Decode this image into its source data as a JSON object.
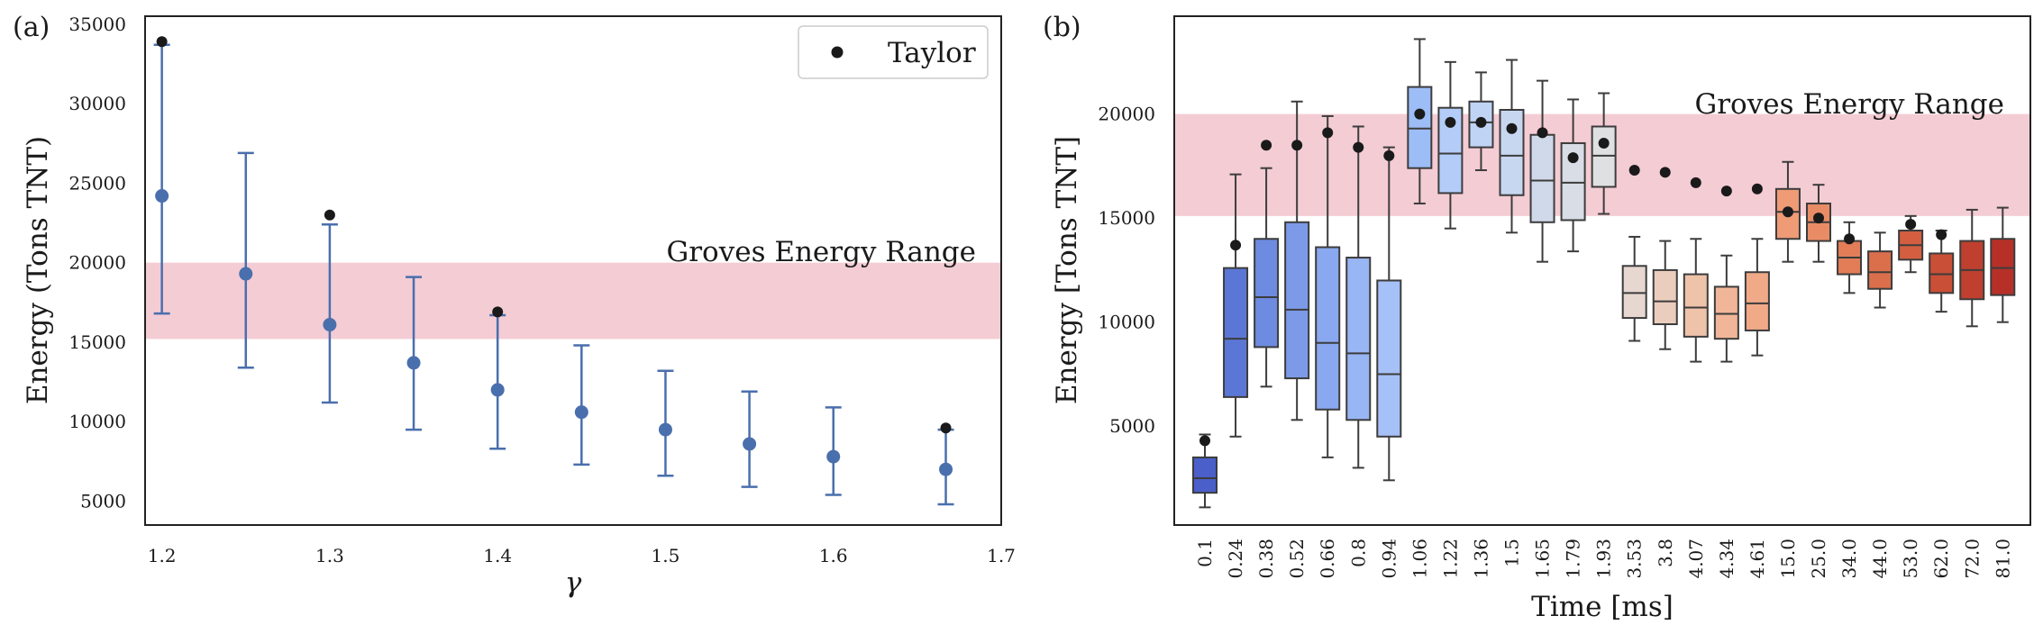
{
  "chart_data": [
    {
      "panel_label": "(a)",
      "type": "scatter",
      "xlabel": "γ",
      "ylabel": "Energy (Tons TNT)",
      "xlim": [
        1.19,
        1.7
      ],
      "ylim": [
        3500,
        35500
      ],
      "xticks": [
        "1.2",
        "1.3",
        "1.4",
        "1.5",
        "1.6",
        "1.7"
      ],
      "yticks": [
        "5000",
        "10000",
        "15000",
        "20000",
        "25000",
        "30000",
        "35000"
      ],
      "grid": false,
      "legend": {
        "placement": "top-right",
        "entries": [
          "Taylor"
        ]
      },
      "band": {
        "label": "Groves Energy Range",
        "range": [
          15200,
          20000
        ],
        "color": "#f4ccd4"
      },
      "colors": {
        "series": "#4a6fad",
        "taylor": "#1a1a1a"
      },
      "series": [
        {
          "name": "",
          "x": [
            1.2,
            1.25,
            1.3,
            1.35,
            1.4,
            1.45,
            1.5,
            1.55,
            1.6,
            1.667
          ],
          "y": [
            24200,
            19300,
            16100,
            13700,
            12000,
            10600,
            9500,
            8600,
            7800,
            7000
          ],
          "ylow": [
            16800,
            13400,
            11200,
            9500,
            8300,
            7300,
            6600,
            5900,
            5400,
            4800
          ],
          "yhigh": [
            33700,
            26900,
            22400,
            19100,
            16700,
            14800,
            13200,
            11900,
            10900,
            9500
          ]
        },
        {
          "name": "Taylor",
          "x": [
            1.2,
            1.3,
            1.4,
            1.667
          ],
          "y": [
            33900,
            23000,
            16900,
            9600
          ]
        }
      ]
    },
    {
      "panel_label": "(b)",
      "type": "box",
      "xlabel": "Time [ms]",
      "ylabel": "Energy [Tons TNT]",
      "ylim": [
        250,
        24700
      ],
      "yticks": [
        "5000",
        "10000",
        "15000",
        "20000"
      ],
      "grid": false,
      "band": {
        "label": "Groves Energy Range",
        "range": [
          15100,
          20000
        ],
        "color": "#f4ccd4"
      },
      "categories": [
        "0.1",
        "0.24",
        "0.38",
        "0.52",
        "0.66",
        "0.8",
        "0.94",
        "1.06",
        "1.22",
        "1.36",
        "1.5",
        "1.65",
        "1.79",
        "1.93",
        "3.53",
        "3.8",
        "4.07",
        "4.34",
        "4.61",
        "15.0",
        "25.0",
        "34.0",
        "44.0",
        "53.0",
        "62.0",
        "72.0",
        "81.0"
      ],
      "colors": [
        "#4a5fc9",
        "#5b77d6",
        "#6d8be0",
        "#7d9ae8",
        "#8aa8ef",
        "#98b5f4",
        "#a6c1f7",
        "#9dbdf7",
        "#b3cdf8",
        "#c0d4f5",
        "#c8d7f0",
        "#d0d9ea",
        "#d8dde6",
        "#dfe0e2",
        "#e6d8d0",
        "#ebcdbd",
        "#efc2aa",
        "#f1b699",
        "#f1aa88",
        "#ee9b76",
        "#e88c66",
        "#e27d58",
        "#db6f4c",
        "#d35f40",
        "#c94f36",
        "#bf402e",
        "#b73028"
      ],
      "boxes": [
        {
          "q1": 1800,
          "median": 2500,
          "q3": 3500,
          "whislo": 1100,
          "whishi": 4600
        },
        {
          "q1": 6400,
          "median": 9200,
          "q3": 12600,
          "whislo": 4500,
          "whishi": 17100
        },
        {
          "q1": 8800,
          "median": 11200,
          "q3": 14000,
          "whislo": 6900,
          "whishi": 17400
        },
        {
          "q1": 7300,
          "median": 10600,
          "q3": 14800,
          "whislo": 5300,
          "whishi": 20600
        },
        {
          "q1": 5800,
          "median": 9000,
          "q3": 13600,
          "whislo": 3500,
          "whishi": 19900
        },
        {
          "q1": 5300,
          "median": 8500,
          "q3": 13100,
          "whislo": 3000,
          "whishi": 19400
        },
        {
          "q1": 4500,
          "median": 7500,
          "q3": 12000,
          "whislo": 2400,
          "whishi": 18400
        },
        {
          "q1": 17400,
          "median": 19300,
          "q3": 21300,
          "whislo": 15700,
          "whishi": 23600
        },
        {
          "q1": 16200,
          "median": 18100,
          "q3": 20300,
          "whislo": 14500,
          "whishi": 22500
        },
        {
          "q1": 18400,
          "median": 19600,
          "q3": 20600,
          "whislo": 17300,
          "whishi": 22000
        },
        {
          "q1": 16100,
          "median": 18000,
          "q3": 20200,
          "whislo": 14300,
          "whishi": 22600
        },
        {
          "q1": 14800,
          "median": 16800,
          "q3": 19000,
          "whislo": 12900,
          "whishi": 21600
        },
        {
          "q1": 14900,
          "median": 16700,
          "q3": 18600,
          "whislo": 13400,
          "whishi": 20700
        },
        {
          "q1": 16500,
          "median": 18000,
          "q3": 19400,
          "whislo": 15200,
          "whishi": 21000
        },
        {
          "q1": 10200,
          "median": 11400,
          "q3": 12700,
          "whislo": 9100,
          "whishi": 14100
        },
        {
          "q1": 9900,
          "median": 11000,
          "q3": 12500,
          "whislo": 8700,
          "whishi": 13900
        },
        {
          "q1": 9300,
          "median": 10700,
          "q3": 12300,
          "whislo": 8100,
          "whishi": 14000
        },
        {
          "q1": 9200,
          "median": 10400,
          "q3": 11700,
          "whislo": 8100,
          "whishi": 13200
        },
        {
          "q1": 9600,
          "median": 10900,
          "q3": 12400,
          "whislo": 8400,
          "whishi": 14000
        },
        {
          "q1": 14000,
          "median": 15300,
          "q3": 16400,
          "whislo": 12900,
          "whishi": 17700
        },
        {
          "q1": 13900,
          "median": 14800,
          "q3": 15700,
          "whislo": 12900,
          "whishi": 16600
        },
        {
          "q1": 12300,
          "median": 13100,
          "q3": 13900,
          "whislo": 11400,
          "whishi": 14800
        },
        {
          "q1": 11600,
          "median": 12400,
          "q3": 13400,
          "whislo": 10700,
          "whishi": 14300
        },
        {
          "q1": 13000,
          "median": 13700,
          "q3": 14400,
          "whislo": 12400,
          "whishi": 15100
        },
        {
          "q1": 11400,
          "median": 12300,
          "q3": 13300,
          "whislo": 10500,
          "whishi": 14400
        },
        {
          "q1": 11100,
          "median": 12500,
          "q3": 13900,
          "whislo": 9800,
          "whishi": 15400
        },
        {
          "q1": 11300,
          "median": 12600,
          "q3": 14000,
          "whislo": 10000,
          "whishi": 15500
        }
      ],
      "means": [
        4300,
        13700,
        18500,
        18500,
        19100,
        18400,
        18000,
        20000,
        19600,
        19600,
        19300,
        19100,
        17900,
        18600,
        17300,
        17200,
        16700,
        16300,
        16400,
        15300,
        15000,
        14000,
        null,
        14700,
        14200,
        null,
        null
      ]
    }
  ]
}
